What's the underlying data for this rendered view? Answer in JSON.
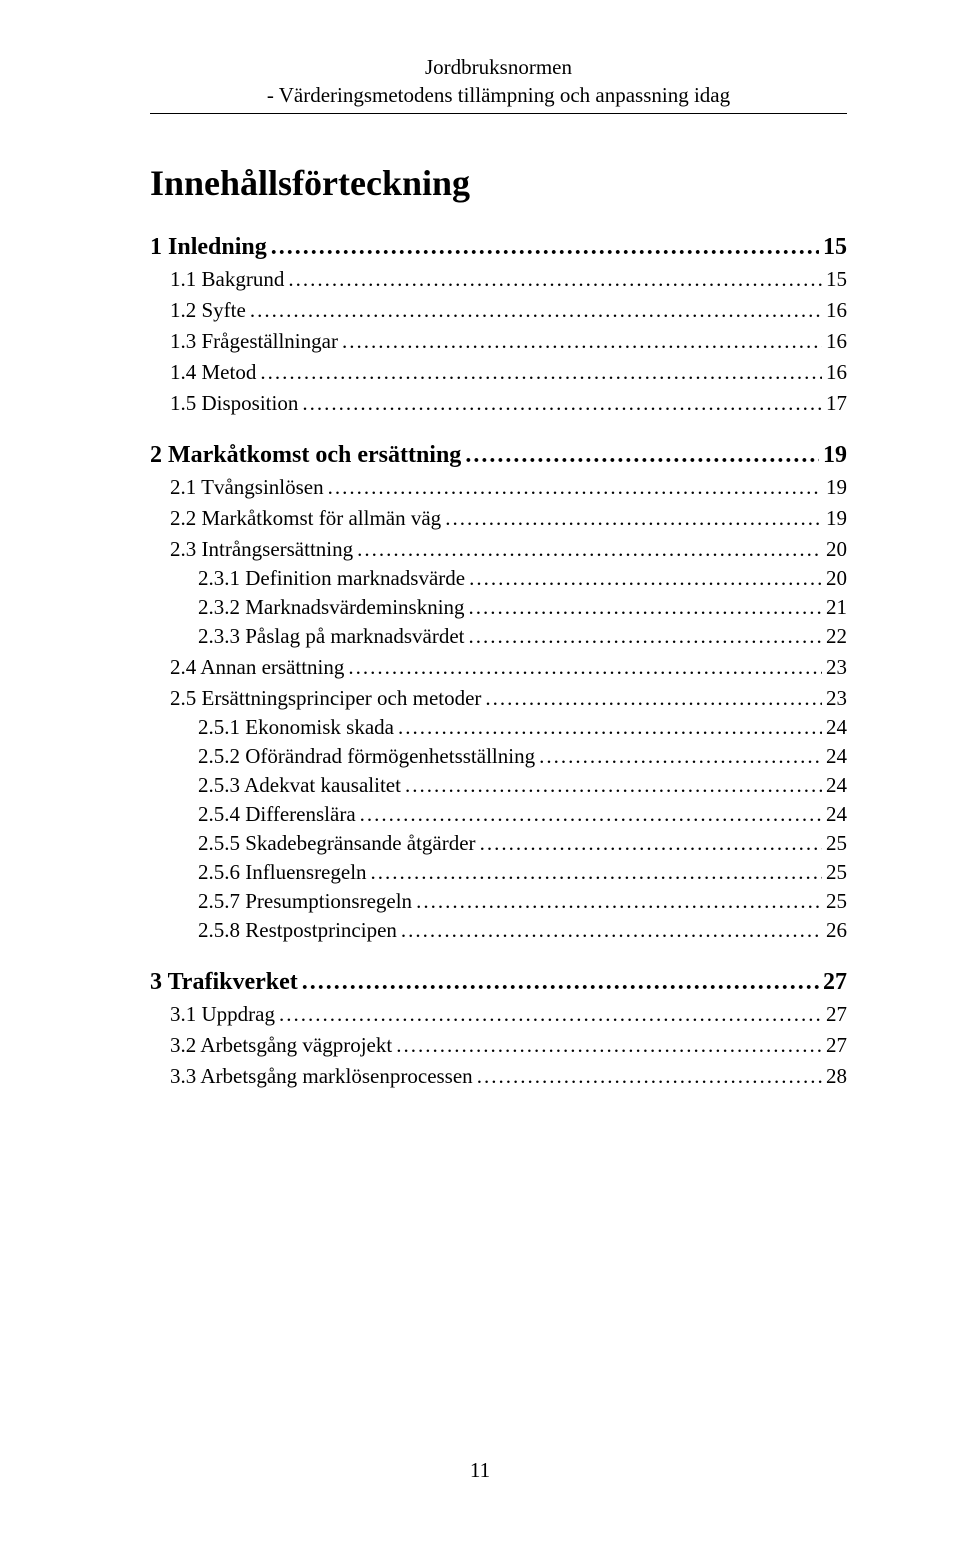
{
  "header": {
    "line1": "Jordbruksnormen",
    "line2": "- Värderingsmetodens tillämpning och anpassning idag"
  },
  "toc_title": "Innehållsförteckning",
  "entries": [
    {
      "level": 1,
      "label": "1 Inledning",
      "page": "15"
    },
    {
      "level": 2,
      "label": "1.1 Bakgrund",
      "page": "15"
    },
    {
      "level": 2,
      "label": "1.2 Syfte",
      "page": "16"
    },
    {
      "level": 2,
      "label": "1.3 Frågeställningar",
      "page": "16"
    },
    {
      "level": 2,
      "label": "1.4 Metod",
      "page": "16"
    },
    {
      "level": 2,
      "label": "1.5 Disposition",
      "page": "17"
    },
    {
      "level": 1,
      "label": "2 Markåtkomst och ersättning",
      "page": "19"
    },
    {
      "level": 2,
      "label": "2.1 Tvångsinlösen",
      "page": "19"
    },
    {
      "level": 2,
      "label": "2.2 Markåtkomst för allmän väg",
      "page": "19"
    },
    {
      "level": 2,
      "label": "2.3 Intrångsersättning",
      "page": "20"
    },
    {
      "level": 3,
      "label": "2.3.1 Definition marknadsvärde",
      "page": "20"
    },
    {
      "level": 3,
      "label": "2.3.2 Marknadsvärdeminskning",
      "page": "21"
    },
    {
      "level": 3,
      "label": "2.3.3 Påslag på marknadsvärdet",
      "page": "22"
    },
    {
      "level": 2,
      "label": "2.4 Annan ersättning",
      "page": "23"
    },
    {
      "level": 2,
      "label": "2.5 Ersättningsprinciper och metoder",
      "page": "23"
    },
    {
      "level": 3,
      "label": "2.5.1 Ekonomisk skada",
      "page": "24"
    },
    {
      "level": 3,
      "label": "2.5.2 Oförändrad förmögenhetsställning",
      "page": "24"
    },
    {
      "level": 3,
      "label": "2.5.3 Adekvat kausalitet",
      "page": "24"
    },
    {
      "level": 3,
      "label": "2.5.4 Differenslära",
      "page": "24"
    },
    {
      "level": 3,
      "label": "2.5.5 Skadebegränsande åtgärder",
      "page": "25"
    },
    {
      "level": 3,
      "label": "2.5.6 Influensregeln",
      "page": "25"
    },
    {
      "level": 3,
      "label": "2.5.7 Presumptionsregeln",
      "page": "25"
    },
    {
      "level": 3,
      "label": "2.5.8 Restpostprincipen",
      "page": "26"
    },
    {
      "level": 1,
      "label": "3 Trafikverket",
      "page": "27"
    },
    {
      "level": 2,
      "label": "3.1 Uppdrag",
      "page": "27"
    },
    {
      "level": 2,
      "label": "3.2 Arbetsgång vägprojekt",
      "page": "27"
    },
    {
      "level": 2,
      "label": "3.3 Arbetsgång marklösenprocessen",
      "page": "28"
    }
  ],
  "footer_page_number": "11"
}
